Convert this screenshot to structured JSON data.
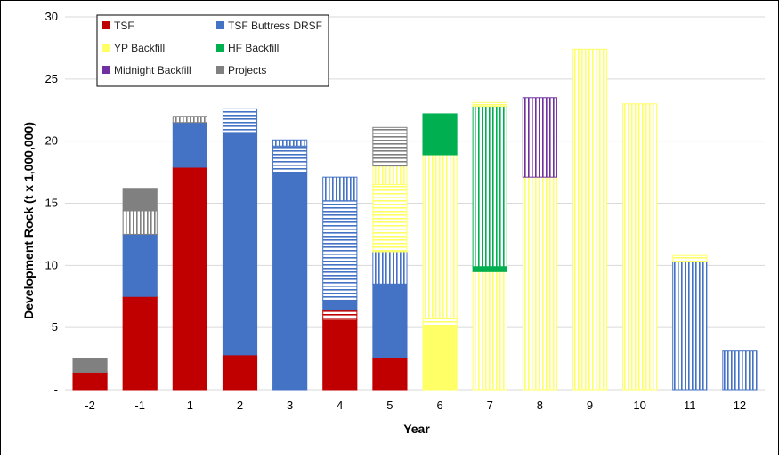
{
  "chart_data": {
    "type": "bar",
    "stacked": true,
    "xlabel": "Year",
    "ylabel": "Development Rock (t x 1,000,000)",
    "ylim": [
      0,
      30
    ],
    "yticks": [
      "-",
      "5",
      "10",
      "15",
      "20",
      "25",
      "30"
    ],
    "grid": true,
    "legend_position": "top-left",
    "categories": [
      "-2",
      "-1",
      "1",
      "2",
      "3",
      "4",
      "5",
      "6",
      "7",
      "8",
      "9",
      "10",
      "11",
      "12"
    ],
    "legend": [
      {
        "name": "TSF",
        "color": "#c00000"
      },
      {
        "name": "TSF Buttress DRSF",
        "color": "#4472c4"
      },
      {
        "name": "YP Backfill",
        "color": "#ffff66"
      },
      {
        "name": "HF Backfill",
        "color": "#00b050"
      },
      {
        "name": "Midnight Backfill",
        "color": "#7030a0"
      },
      {
        "name": "Projects",
        "color": "#808080"
      }
    ],
    "bars": [
      {
        "category": "-2",
        "segments": [
          {
            "series": "TSF",
            "value": 1.4,
            "pattern": "solid"
          },
          {
            "series": "Projects",
            "value": 1.1,
            "pattern": "solid"
          }
        ]
      },
      {
        "category": "-1",
        "segments": [
          {
            "series": "TSF",
            "value": 7.5,
            "pattern": "solid"
          },
          {
            "series": "TSF Buttress DRSF",
            "value": 5.0,
            "pattern": "solid"
          },
          {
            "series": "Projects",
            "value": 1.9,
            "pattern": "vertical"
          },
          {
            "series": "Projects",
            "value": 1.8,
            "pattern": "solid"
          }
        ]
      },
      {
        "category": "1",
        "segments": [
          {
            "series": "TSF",
            "value": 17.9,
            "pattern": "solid"
          },
          {
            "series": "TSF Buttress DRSF",
            "value": 3.6,
            "pattern": "solid"
          },
          {
            "series": "Projects",
            "value": 0.5,
            "pattern": "vertical"
          }
        ]
      },
      {
        "category": "2",
        "segments": [
          {
            "series": "TSF",
            "value": 2.8,
            "pattern": "solid"
          },
          {
            "series": "TSF Buttress DRSF",
            "value": 17.9,
            "pattern": "solid"
          },
          {
            "series": "TSF Buttress DRSF",
            "value": 1.9,
            "pattern": "horizontal"
          }
        ]
      },
      {
        "category": "3",
        "segments": [
          {
            "series": "TSF Buttress DRSF",
            "value": 17.4,
            "pattern": "solid"
          },
          {
            "series": "TSF Buttress DRSF",
            "value": 2.2,
            "pattern": "horizontal"
          },
          {
            "series": "TSF Buttress DRSF",
            "value": 0.5,
            "pattern": "vertical"
          }
        ]
      },
      {
        "category": "4",
        "segments": [
          {
            "series": "TSF",
            "value": 5.6,
            "pattern": "solid"
          },
          {
            "series": "TSF",
            "value": 0.8,
            "pattern": "horizontal"
          },
          {
            "series": "TSF Buttress DRSF",
            "value": 0.8,
            "pattern": "solid"
          },
          {
            "series": "TSF Buttress DRSF",
            "value": 8.0,
            "pattern": "horizontal"
          },
          {
            "series": "TSF Buttress DRSF",
            "value": 1.9,
            "pattern": "vertical"
          }
        ]
      },
      {
        "category": "5",
        "segments": [
          {
            "series": "TSF",
            "value": 2.6,
            "pattern": "solid"
          },
          {
            "series": "TSF Buttress DRSF",
            "value": 5.9,
            "pattern": "solid"
          },
          {
            "series": "TSF Buttress DRSF",
            "value": 2.6,
            "pattern": "vertical"
          },
          {
            "series": "YP Backfill",
            "value": 5.4,
            "pattern": "horizontal"
          },
          {
            "series": "YP Backfill",
            "value": 1.5,
            "pattern": "vertical"
          },
          {
            "series": "Projects",
            "value": 3.1,
            "pattern": "horizontal"
          }
        ]
      },
      {
        "category": "6",
        "segments": [
          {
            "series": "YP Backfill",
            "value": 5.1,
            "pattern": "solid"
          },
          {
            "series": "YP Backfill",
            "value": 0.6,
            "pattern": "horizontal"
          },
          {
            "series": "YP Backfill",
            "value": 13.2,
            "pattern": "vertical"
          },
          {
            "series": "HF Backfill",
            "value": 3.3,
            "pattern": "solid"
          }
        ]
      },
      {
        "category": "7",
        "segments": [
          {
            "series": "YP Backfill",
            "value": 9.5,
            "pattern": "vertical"
          },
          {
            "series": "HF Backfill",
            "value": 0.4,
            "pattern": "solid"
          },
          {
            "series": "HF Backfill",
            "value": 12.9,
            "pattern": "vertical"
          },
          {
            "series": "YP Backfill",
            "value": 0.3,
            "pattern": "horizontal"
          }
        ]
      },
      {
        "category": "8",
        "segments": [
          {
            "series": "YP Backfill",
            "value": 17.1,
            "pattern": "vertical"
          },
          {
            "series": "Midnight Backfill",
            "value": 6.4,
            "pattern": "vertical"
          }
        ]
      },
      {
        "category": "9",
        "segments": [
          {
            "series": "YP Backfill",
            "value": 27.4,
            "pattern": "vertical"
          }
        ]
      },
      {
        "category": "10",
        "segments": [
          {
            "series": "YP Backfill",
            "value": 23.0,
            "pattern": "vertical"
          }
        ]
      },
      {
        "category": "11",
        "segments": [
          {
            "series": "TSF Buttress DRSF",
            "value": 10.3,
            "pattern": "vertical"
          },
          {
            "series": "YP Backfill",
            "value": 0.5,
            "pattern": "horizontal"
          }
        ]
      },
      {
        "category": "12",
        "segments": [
          {
            "series": "TSF Buttress DRSF",
            "value": 3.1,
            "pattern": "vertical"
          }
        ]
      }
    ]
  }
}
